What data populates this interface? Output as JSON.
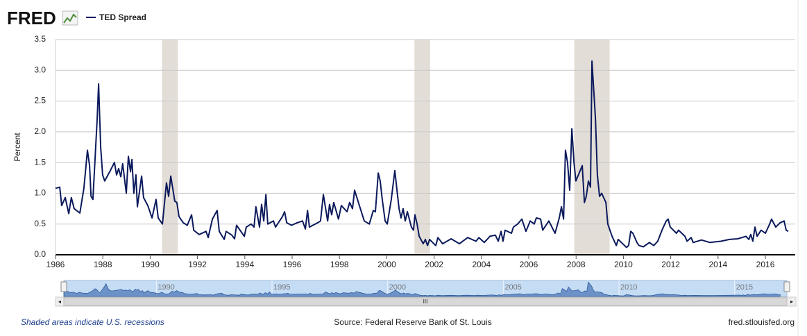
{
  "logo": "FRED",
  "chart_data": {
    "type": "line",
    "y_label": "Percent",
    "series": [
      {
        "name": "TED Spread",
        "color": "#0b1a5c",
        "x": [
          1986.0,
          1986.18,
          1986.26,
          1986.41,
          1986.56,
          1986.67,
          1986.79,
          1987.03,
          1987.2,
          1987.35,
          1987.44,
          1987.5,
          1987.58,
          1987.76,
          1987.82,
          1987.91,
          1987.99,
          1988.08,
          1988.29,
          1988.49,
          1988.58,
          1988.67,
          1988.76,
          1988.84,
          1988.99,
          1989.08,
          1989.17,
          1989.23,
          1989.31,
          1989.4,
          1989.46,
          1989.64,
          1989.72,
          1989.9,
          1990.08,
          1990.25,
          1990.34,
          1990.52,
          1990.69,
          1990.78,
          1990.87,
          1991.04,
          1991.13,
          1991.22,
          1991.4,
          1991.57,
          1991.75,
          1991.84,
          1992.07,
          1992.36,
          1992.45,
          1992.63,
          1992.83,
          1992.92,
          1993.13,
          1993.21,
          1993.45,
          1993.57,
          1993.65,
          1993.98,
          1994.06,
          1994.27,
          1994.39,
          1994.47,
          1994.62,
          1994.71,
          1994.8,
          1994.89,
          1994.97,
          1995.21,
          1995.3,
          1995.59,
          1995.68,
          1995.77,
          1995.97,
          1996.21,
          1996.44,
          1996.56,
          1996.65,
          1996.73,
          1997.08,
          1997.2,
          1997.32,
          1997.5,
          1997.58,
          1997.67,
          1997.76,
          1997.96,
          1998.08,
          1998.32,
          1998.43,
          1998.55,
          1998.64,
          1998.84,
          1999.05,
          1999.26,
          1999.43,
          1999.52,
          1999.64,
          1999.72,
          1999.81,
          1999.93,
          2000.02,
          2000.19,
          2000.34,
          2000.43,
          2000.52,
          2000.6,
          2000.69,
          2000.78,
          2000.87,
          2001.04,
          2001.13,
          2001.19,
          2001.28,
          2001.37,
          2001.54,
          2001.63,
          2001.72,
          2001.81,
          2002.07,
          2002.16,
          2002.36,
          2002.72,
          2003.07,
          2003.42,
          2003.77,
          2003.89,
          2004.12,
          2004.36,
          2004.59,
          2004.71,
          2004.83,
          2004.91,
          2005.0,
          2005.27,
          2005.35,
          2005.53,
          2005.71,
          2005.88,
          2006.06,
          2006.23,
          2006.32,
          2006.5,
          2006.59,
          2006.85,
          2007.11,
          2007.29,
          2007.38,
          2007.47,
          2007.55,
          2007.64,
          2007.73,
          2007.82,
          2007.91,
          2007.99,
          2008.26,
          2008.35,
          2008.43,
          2008.52,
          2008.61,
          2008.67,
          2008.76,
          2008.82,
          2008.9,
          2008.99,
          2009.08,
          2009.26,
          2009.34,
          2009.52,
          2009.7,
          2009.78,
          2010.05,
          2010.13,
          2010.22,
          2010.31,
          2010.4,
          2010.57,
          2010.66,
          2010.84,
          2011.1,
          2011.28,
          2011.45,
          2011.63,
          2011.81,
          2011.89,
          2011.98,
          2012.24,
          2012.33,
          2012.6,
          2012.69,
          2012.86,
          2012.95,
          2013.3,
          2013.65,
          2014.12,
          2014.48,
          2014.83,
          2015.18,
          2015.3,
          2015.38,
          2015.47,
          2015.56,
          2015.65,
          2015.82,
          2016.0,
          2016.18,
          2016.26,
          2016.44,
          2016.62,
          2016.79,
          2016.88,
          2016.97
        ],
        "values": [
          1.08,
          1.1,
          0.8,
          0.93,
          0.67,
          0.93,
          0.75,
          0.68,
          1.08,
          1.7,
          1.45,
          0.95,
          0.9,
          2.2,
          2.78,
          1.75,
          1.3,
          1.2,
          1.35,
          1.5,
          1.3,
          1.4,
          1.27,
          1.48,
          1.0,
          1.6,
          1.35,
          1.55,
          1.0,
          1.3,
          0.78,
          1.28,
          0.93,
          0.8,
          0.6,
          0.9,
          0.6,
          0.5,
          1.17,
          0.95,
          1.28,
          0.87,
          0.85,
          0.62,
          0.52,
          0.48,
          0.65,
          0.4,
          0.33,
          0.38,
          0.28,
          0.58,
          0.72,
          0.38,
          0.25,
          0.38,
          0.32,
          0.26,
          0.48,
          0.3,
          0.45,
          0.5,
          0.45,
          0.78,
          0.45,
          0.82,
          0.55,
          0.98,
          0.5,
          0.55,
          0.45,
          0.62,
          0.7,
          0.52,
          0.48,
          0.52,
          0.55,
          0.42,
          0.72,
          0.45,
          0.52,
          0.55,
          0.98,
          0.55,
          0.82,
          0.65,
          0.85,
          0.58,
          0.8,
          0.7,
          0.85,
          0.75,
          1.05,
          0.8,
          0.55,
          0.5,
          0.72,
          0.7,
          1.33,
          1.2,
          0.9,
          0.55,
          0.5,
          0.9,
          1.37,
          1.05,
          0.75,
          0.6,
          0.75,
          0.55,
          0.7,
          0.45,
          0.4,
          0.65,
          0.5,
          0.3,
          0.18,
          0.25,
          0.15,
          0.25,
          0.15,
          0.28,
          0.18,
          0.26,
          0.18,
          0.28,
          0.22,
          0.28,
          0.2,
          0.3,
          0.32,
          0.22,
          0.38,
          0.22,
          0.4,
          0.35,
          0.45,
          0.5,
          0.58,
          0.38,
          0.55,
          0.5,
          0.6,
          0.58,
          0.4,
          0.55,
          0.35,
          0.6,
          0.78,
          0.58,
          1.7,
          1.5,
          1.05,
          2.05,
          1.5,
          1.2,
          1.45,
          0.85,
          0.95,
          1.2,
          1.1,
          3.15,
          2.6,
          2.2,
          1.3,
          0.95,
          1.0,
          0.85,
          0.5,
          0.3,
          0.15,
          0.25,
          0.15,
          0.12,
          0.15,
          0.38,
          0.35,
          0.2,
          0.15,
          0.13,
          0.2,
          0.15,
          0.22,
          0.4,
          0.55,
          0.58,
          0.45,
          0.35,
          0.4,
          0.3,
          0.22,
          0.28,
          0.2,
          0.24,
          0.2,
          0.22,
          0.25,
          0.26,
          0.3,
          0.25,
          0.33,
          0.22,
          0.45,
          0.3,
          0.4,
          0.35,
          0.5,
          0.58,
          0.45,
          0.52,
          0.55,
          0.4,
          0.38
        ]
      }
    ],
    "recessions": [
      [
        1990.5,
        1991.17
      ],
      [
        2001.17,
        2001.83
      ],
      [
        2007.92,
        2009.42
      ]
    ],
    "xlim": [
      1986,
      2017.26
    ],
    "xticks": [
      1986,
      1988,
      1990,
      1992,
      1994,
      1996,
      1998,
      2000,
      2002,
      2004,
      2006,
      2008,
      2010,
      2012,
      2014,
      2016
    ],
    "ylim": [
      0,
      3.5
    ],
    "yticks": [
      {
        "value": 0,
        "label": "0.0"
      },
      0.5,
      {
        "value": 1,
        "label": "1.0"
      },
      1.5,
      {
        "value": 2,
        "label": "2.0"
      },
      2.5,
      {
        "value": 3,
        "label": "3.0"
      },
      3.5
    ],
    "grid": true,
    "navigator_ticks": [
      1990,
      1995,
      2000,
      2005,
      2010,
      2015
    ],
    "footnote": "Shaded areas indicate U.S. recessions",
    "source": "Source: Federal Reserve Bank of St. Louis",
    "url": "fred.stlouisfed.org"
  }
}
